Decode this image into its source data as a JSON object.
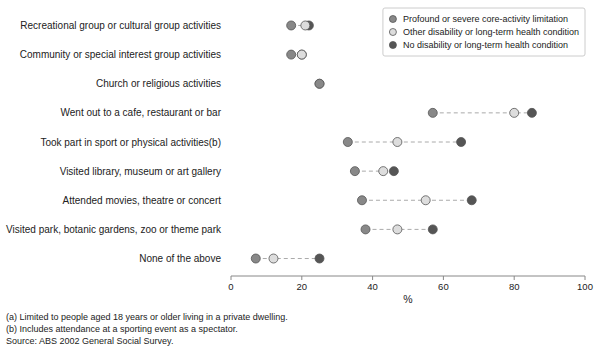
{
  "chart_data": {
    "type": "dot",
    "orientation": "horizontal",
    "categories": [
      "Recreational group or cultural group activities",
      "Community or special interest group activities",
      "Church or religious activities",
      "Went out to a cafe, restaurant or bar",
      "Took part in sport or physical activities(b)",
      "Visited library, museum or art gallery",
      "Attended movies, theatre or concert",
      "Visited park, botanic gardens, zoo or theme park",
      "None of the above"
    ],
    "series": [
      {
        "name": "Profound or severe core-activity limitation",
        "color": "#888888",
        "values": [
          17,
          17,
          25,
          57,
          33,
          35,
          37,
          38,
          7
        ]
      },
      {
        "name": "Other disability or long-term health condition",
        "color": "#dddddd",
        "values": [
          21,
          20,
          25,
          80,
          47,
          43,
          55,
          47,
          12
        ]
      },
      {
        "name": "No disability or long-term health condition",
        "color": "#555555",
        "values": [
          22,
          20,
          null,
          85,
          65,
          46,
          68,
          57,
          25
        ]
      }
    ],
    "xlabel": "%",
    "xlim": [
      0,
      100
    ],
    "xticks": [
      0,
      20,
      40,
      60,
      80,
      100
    ],
    "grid": false,
    "legend": "upper right",
    "marker": "circle",
    "annotations": [
      "(a) Limited to people aged 18 years or older living in a private dwelling.",
      "(b) Includes attendance at a sporting event as a spectator.",
      "Source: ABS 2002 General Social Survey."
    ]
  }
}
